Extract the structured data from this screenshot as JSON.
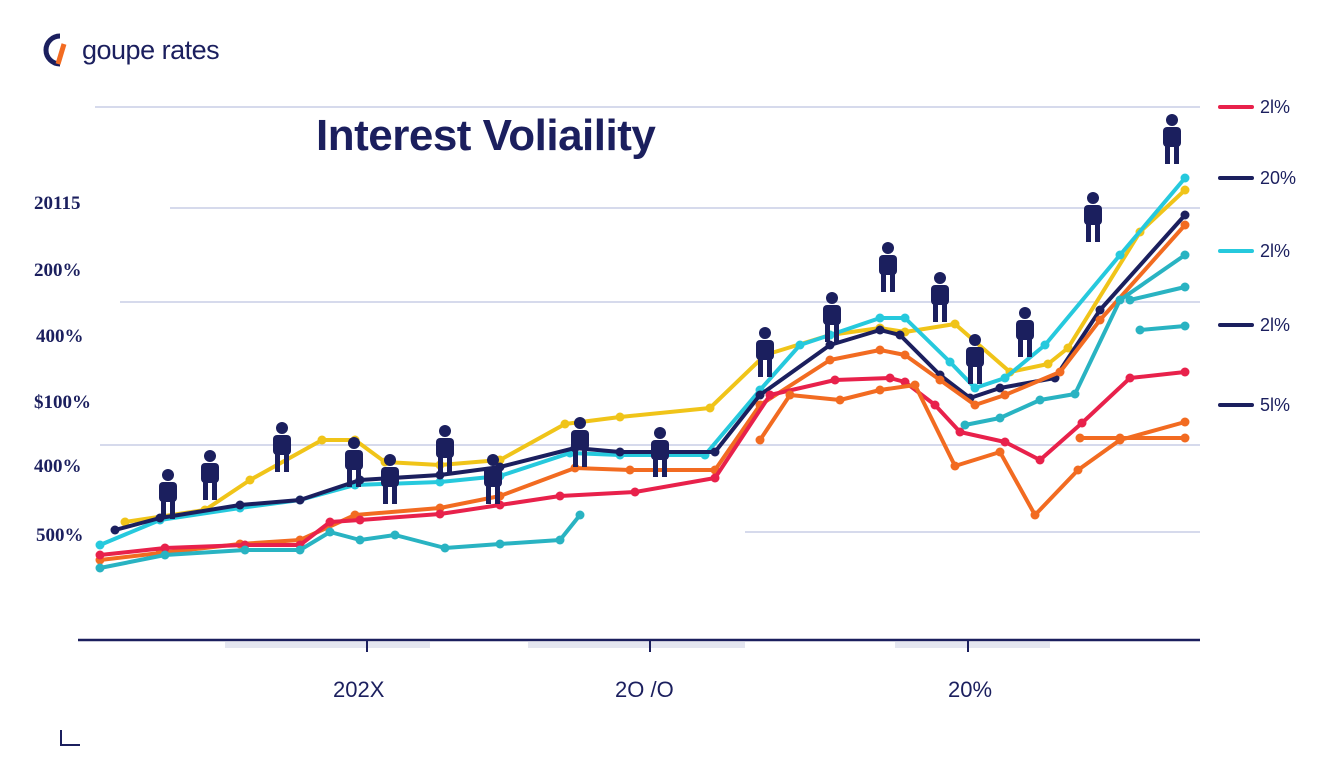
{
  "brand": {
    "name": "goupe rates",
    "mark_colors": [
      "#1b1f5e",
      "#f26b21"
    ]
  },
  "colors": {
    "text": "#1b1f5e",
    "grid": "#c8cde6",
    "axis": "#1b1f5e"
  },
  "chart_data": {
    "type": "line",
    "title": "Interest Voliaility",
    "xlabel": "",
    "ylabel": "",
    "ytick_labels": [
      "20115",
      "200%",
      "400%",
      "$100%",
      "400%",
      "500%"
    ],
    "xtick_labels": [
      "202X",
      "2O /O",
      "20%"
    ],
    "legend_position": "right",
    "grid": true,
    "series": [
      {
        "color": "#f0c419",
        "values": [
          [
            125,
            522
          ],
          [
            205,
            510
          ],
          [
            250,
            480
          ],
          [
            322,
            440
          ],
          [
            355,
            440
          ],
          [
            385,
            462
          ],
          [
            440,
            465
          ],
          [
            500,
            460
          ],
          [
            565,
            424
          ],
          [
            620,
            417
          ],
          [
            710,
            408
          ],
          [
            765,
            355
          ],
          [
            830,
            335
          ],
          [
            880,
            328
          ],
          [
            905,
            332
          ],
          [
            955,
            324
          ],
          [
            1010,
            372
          ],
          [
            1048,
            364
          ],
          [
            1068,
            348
          ],
          [
            1140,
            232
          ],
          [
            1185,
            190
          ]
        ]
      },
      {
        "color": "#26c9dd",
        "values": [
          [
            100,
            545
          ],
          [
            160,
            520
          ],
          [
            240,
            508
          ],
          [
            300,
            500
          ],
          [
            355,
            485
          ],
          [
            440,
            482
          ],
          [
            500,
            476
          ],
          [
            570,
            453
          ],
          [
            620,
            455
          ],
          [
            705,
            455
          ],
          [
            760,
            390
          ],
          [
            800,
            345
          ],
          [
            830,
            335
          ],
          [
            880,
            318
          ],
          [
            905,
            318
          ],
          [
            950,
            362
          ],
          [
            975,
            388
          ],
          [
            1005,
            378
          ],
          [
            1045,
            345
          ],
          [
            1120,
            255
          ],
          [
            1185,
            178
          ]
        ]
      },
      {
        "color": "#1b1f5e",
        "values": [
          [
            115,
            530
          ],
          [
            160,
            518
          ],
          [
            240,
            505
          ],
          [
            300,
            500
          ],
          [
            360,
            480
          ],
          [
            440,
            475
          ],
          [
            500,
            467
          ],
          [
            575,
            448
          ],
          [
            620,
            452
          ],
          [
            715,
            452
          ],
          [
            760,
            395
          ],
          [
            830,
            345
          ],
          [
            880,
            330
          ],
          [
            900,
            335
          ],
          [
            940,
            375
          ],
          [
            970,
            398
          ],
          [
            1000,
            388
          ],
          [
            1055,
            378
          ],
          [
            1100,
            310
          ],
          [
            1185,
            215
          ]
        ]
      },
      {
        "color": "#f26b21",
        "values": [
          [
            100,
            560
          ],
          [
            160,
            553
          ],
          [
            240,
            544
          ],
          [
            300,
            540
          ],
          [
            355,
            515
          ],
          [
            440,
            508
          ],
          [
            500,
            496
          ],
          [
            575,
            468
          ],
          [
            630,
            470
          ],
          [
            715,
            470
          ],
          [
            760,
            405
          ],
          [
            830,
            360
          ],
          [
            880,
            350
          ],
          [
            905,
            355
          ],
          [
            940,
            380
          ],
          [
            975,
            405
          ],
          [
            1005,
            395
          ],
          [
            1060,
            372
          ],
          [
            1100,
            320
          ],
          [
            1185,
            225
          ]
        ]
      },
      {
        "color": "#e8214b",
        "values": [
          [
            100,
            555
          ],
          [
            165,
            548
          ],
          [
            245,
            545
          ],
          [
            300,
            545
          ],
          [
            330,
            522
          ],
          [
            360,
            520
          ],
          [
            440,
            514
          ],
          [
            500,
            505
          ],
          [
            560,
            496
          ],
          [
            635,
            492
          ],
          [
            715,
            478
          ],
          [
            770,
            395
          ],
          [
            835,
            380
          ],
          [
            890,
            378
          ],
          [
            905,
            382
          ],
          [
            935,
            405
          ],
          [
            960,
            432
          ],
          [
            1005,
            442
          ],
          [
            1040,
            460
          ],
          [
            1082,
            423
          ],
          [
            1130,
            378
          ],
          [
            1185,
            372
          ]
        ]
      },
      {
        "color": "#f26b21",
        "values": [
          [
            760,
            440
          ],
          [
            790,
            395
          ],
          [
            840,
            400
          ],
          [
            880,
            390
          ],
          [
            915,
            385
          ],
          [
            955,
            466
          ],
          [
            1000,
            452
          ],
          [
            1035,
            515
          ],
          [
            1078,
            470
          ],
          [
            1120,
            440
          ],
          [
            1185,
            422
          ]
        ]
      },
      {
        "color": "#f26b21",
        "values": [
          [
            1080,
            438
          ],
          [
            1120,
            438
          ],
          [
            1185,
            438
          ]
        ]
      },
      {
        "color": "#29b3c2",
        "values": [
          [
            100,
            568
          ],
          [
            165,
            555
          ],
          [
            245,
            550
          ],
          [
            300,
            550
          ],
          [
            330,
            532
          ],
          [
            360,
            540
          ],
          [
            395,
            535
          ],
          [
            445,
            548
          ],
          [
            500,
            544
          ],
          [
            560,
            540
          ],
          [
            580,
            515
          ]
        ]
      },
      {
        "color": "#29b3c2",
        "values": [
          [
            965,
            425
          ],
          [
            1000,
            418
          ],
          [
            1040,
            400
          ],
          [
            1075,
            394
          ],
          [
            1120,
            300
          ],
          [
            1185,
            255
          ]
        ]
      },
      {
        "color": "#29b3c2",
        "values": [
          [
            1130,
            300
          ],
          [
            1185,
            287
          ]
        ]
      },
      {
        "color": "#29b3c2",
        "values": [
          [
            1140,
            330
          ],
          [
            1185,
            326
          ]
        ]
      }
    ],
    "legend": [
      {
        "label": "2l%",
        "color": "#e8214b"
      },
      {
        "label": "20%",
        "color": "#1b1f5e"
      },
      {
        "label": "2l%",
        "color": "#26c9dd"
      },
      {
        "label": "2l%",
        "color": "#1b1f5e"
      },
      {
        "label": "5l%",
        "color": "#1b1f5e"
      }
    ],
    "figure_markers": [
      [
        168,
        497
      ],
      [
        210,
        478
      ],
      [
        282,
        450
      ],
      [
        354,
        465
      ],
      [
        390,
        482
      ],
      [
        445,
        453
      ],
      [
        493,
        482
      ],
      [
        580,
        445
      ],
      [
        660,
        455
      ],
      [
        765,
        355
      ],
      [
        832,
        320
      ],
      [
        888,
        270
      ],
      [
        940,
        300
      ],
      [
        975,
        362
      ],
      [
        1025,
        335
      ],
      [
        1093,
        220
      ],
      [
        1172,
        142
      ]
    ]
  }
}
